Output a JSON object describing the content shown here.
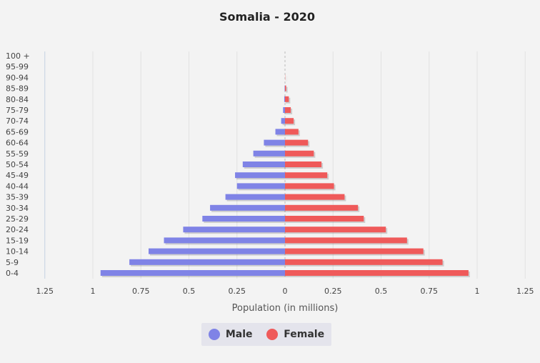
{
  "chart_data": {
    "type": "bar",
    "orientation": "horizontal",
    "title": "Somalia - 2020",
    "xlabel": "Population (in millions)",
    "ylabel": "",
    "xlim": [
      -1.25,
      1.25
    ],
    "xticks": [
      {
        "value": -1.25,
        "label": "1.25"
      },
      {
        "value": -1,
        "label": "1"
      },
      {
        "value": -0.75,
        "label": "0.75"
      },
      {
        "value": -0.5,
        "label": "0.5"
      },
      {
        "value": -0.25,
        "label": "0.25"
      },
      {
        "value": 0,
        "label": "0"
      },
      {
        "value": 0.25,
        "label": "0.25"
      },
      {
        "value": 0.5,
        "label": "0.5"
      },
      {
        "value": 0.75,
        "label": "0.75"
      },
      {
        "value": 1,
        "label": "1"
      },
      {
        "value": 1.25,
        "label": "1.25"
      }
    ],
    "categories": [
      "0-4",
      "5-9",
      "10-14",
      "15-19",
      "20-24",
      "25-29",
      "30-34",
      "35-39",
      "40-44",
      "45-49",
      "50-54",
      "55-59",
      "60-64",
      "65-69",
      "70-74",
      "75-79",
      "80-84",
      "85-89",
      "90-94",
      "95-99",
      "100 +"
    ],
    "series": [
      {
        "name": "Male",
        "color": "#7f83e6",
        "values": [
          0.96,
          0.81,
          0.71,
          0.63,
          0.53,
          0.43,
          0.39,
          0.31,
          0.25,
          0.26,
          0.22,
          0.165,
          0.11,
          0.05,
          0.02,
          0.01,
          0.004,
          0.002,
          0,
          0,
          0
        ]
      },
      {
        "name": "Female",
        "color": "#ef5a5a",
        "values": [
          0.955,
          0.82,
          0.72,
          0.635,
          0.525,
          0.41,
          0.38,
          0.31,
          0.255,
          0.22,
          0.19,
          0.15,
          0.12,
          0.07,
          0.045,
          0.03,
          0.02,
          0.006,
          0.001,
          0,
          0
        ]
      }
    ],
    "grid": true,
    "legend_position": "bottom"
  },
  "legend": {
    "male_label": "Male",
    "female_label": "Female"
  }
}
